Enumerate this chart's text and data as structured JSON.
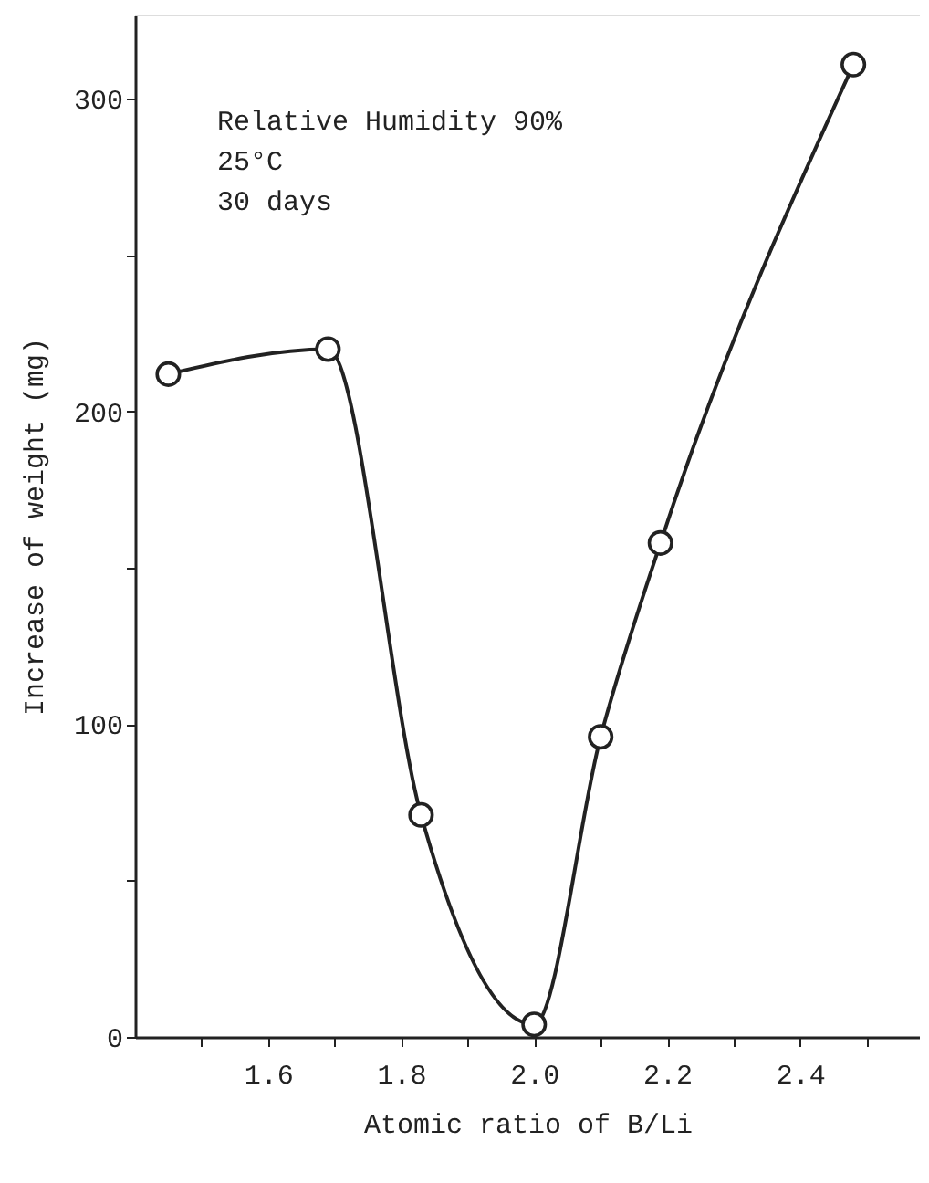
{
  "chart_data": {
    "type": "line",
    "xlabel": "Atomic ratio of B/Li",
    "ylabel": "Increase of weight (mg)",
    "annotations": [
      "Relative Humidity 90%",
      "25°C",
      "30 days"
    ],
    "series": [
      {
        "color": "#222222",
        "x": [
          1.45,
          1.69,
          1.83,
          2.0,
          2.1,
          2.19,
          2.48
        ],
        "values": [
          212,
          220,
          71,
          4,
          96,
          158,
          311
        ]
      }
    ],
    "xlim": [
      1.4,
      2.58
    ],
    "ylim": [
      0,
      327
    ],
    "xticks": [
      {
        "value": 1.5,
        "label": null
      },
      1.6,
      {
        "value": 1.7,
        "label": null
      },
      1.8,
      {
        "value": 1.9,
        "label": null
      },
      {
        "value": 2.0,
        "label": "2.0"
      },
      {
        "value": 2.1,
        "label": null
      },
      2.2,
      {
        "value": 2.3,
        "label": null
      },
      2.4,
      {
        "value": 2.5,
        "label": null
      }
    ],
    "yticks": [
      0,
      {
        "value": 50,
        "label": null
      },
      100,
      {
        "value": 150,
        "label": null
      },
      200,
      {
        "value": 250,
        "label": null
      },
      300
    ],
    "marker": "circle"
  }
}
